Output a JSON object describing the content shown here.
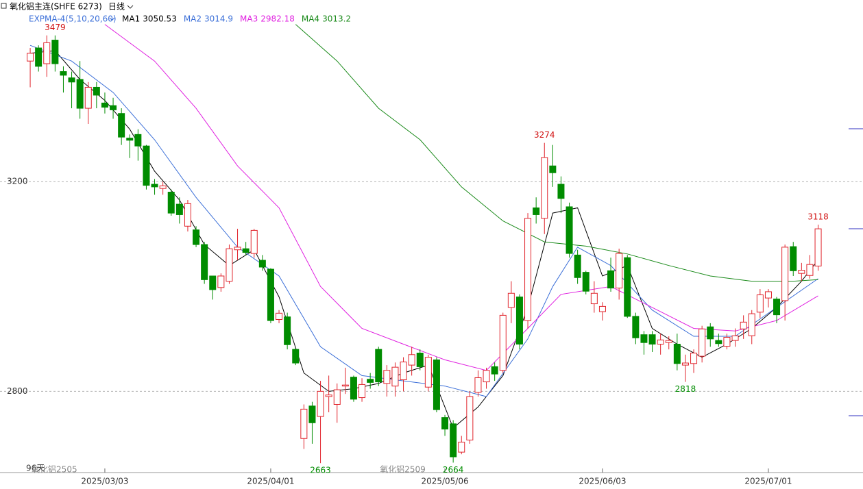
{
  "chart_data": {
    "type": "candlestick",
    "title": "氧化铝主连(SHFE 6273)",
    "period": "日线",
    "indicator": "EXPMA-4(5,10,20,60)",
    "up_color": "#e0232b",
    "down_color": "#008c00",
    "ylim": [
      2645,
      3523
    ],
    "yticks": [
      2800,
      3200
    ],
    "grid": true,
    "open": [
      3430,
      3455,
      3425,
      3470,
      3410,
      3398,
      3395,
      3340,
      3380,
      3350,
      3345,
      3330,
      3283,
      3290,
      3268,
      3195,
      3187,
      3180,
      3157,
      3115,
      3108,
      3080,
      3020,
      2998,
      3010,
      3070,
      3072,
      3063,
      3050,
      3033,
      2937,
      2942,
      2880,
      2710,
      2772,
      2752,
      2790,
      2775,
      2810,
      2827,
      2788,
      2823,
      2880,
      2815,
      2810,
      2822,
      2850,
      2873,
      2808,
      2860,
      2750,
      2738,
      2684,
      2707,
      2798,
      2818,
      2847,
      2840,
      2960,
      2980,
      2935,
      3150,
      3130,
      3230,
      3195,
      3152,
      3060,
      3027,
      2967,
      2952,
      3030,
      2997,
      3055,
      2943,
      2908,
      2908,
      2890,
      2893,
      2890,
      2850,
      2853,
      2867,
      2923,
      2897,
      2886,
      2897,
      2919,
      2906,
      2951,
      2978,
      2976,
      2973,
      3076,
      3025,
      3021,
      3039
    ],
    "high": [
      3455,
      3460,
      3479,
      3479,
      3420,
      3410,
      3430,
      3390,
      3390,
      3370,
      3360,
      3340,
      3290,
      3300,
      3270,
      3205,
      3200,
      3185,
      3170,
      3165,
      3115,
      3085,
      3020,
      3025,
      3080,
      3110,
      3085,
      3110,
      3060,
      3035,
      2955,
      2950,
      2882,
      2775,
      2780,
      2820,
      2830,
      2815,
      2845,
      2830,
      2825,
      2835,
      2885,
      2850,
      2855,
      2865,
      2885,
      2880,
      2870,
      2865,
      2755,
      2745,
      2715,
      2800,
      2840,
      2845,
      2855,
      2950,
      3010,
      2985,
      3140,
      3170,
      3274,
      3270,
      3210,
      3160,
      3070,
      3030,
      3010,
      2970,
      3055,
      3072,
      3060,
      2950,
      2915,
      2915,
      2910,
      2905,
      2910,
      2870,
      2880,
      2925,
      2930,
      2910,
      2910,
      2920,
      2945,
      2955,
      2995,
      2995,
      2980,
      3080,
      3085,
      3045,
      3060,
      3118
    ],
    "low": [
      3380,
      3410,
      3400,
      3410,
      3370,
      3340,
      3320,
      3310,
      3340,
      3330,
      3320,
      3270,
      3245,
      3240,
      3185,
      3175,
      3175,
      3135,
      3120,
      3105,
      3075,
      3005,
      2975,
      2990,
      3005,
      3050,
      3060,
      3055,
      3030,
      2930,
      2930,
      2880,
      2850,
      2690,
      2700,
      2663,
      2760,
      2740,
      2795,
      2780,
      2780,
      2805,
      2810,
      2790,
      2790,
      2800,
      2830,
      2840,
      2800,
      2760,
      2715,
      2664,
      2680,
      2700,
      2790,
      2805,
      2820,
      2835,
      2930,
      2880,
      2920,
      3120,
      3100,
      3190,
      3140,
      3055,
      3005,
      2985,
      2950,
      2935,
      2990,
      2975,
      2940,
      2890,
      2870,
      2875,
      2870,
      2880,
      2840,
      2818,
      2835,
      2855,
      2885,
      2885,
      2880,
      2885,
      2900,
      2890,
      2940,
      2960,
      2930,
      2935,
      3020,
      3010,
      3015,
      3030
    ],
    "close": [
      3445,
      3420,
      3465,
      3425,
      3403,
      3390,
      3340,
      3380,
      3365,
      3342,
      3337,
      3285,
      3279,
      3268,
      3193,
      3190,
      3192,
      3140,
      3137,
      3158,
      3080,
      3013,
      2994,
      3020,
      3072,
      3075,
      3065,
      3107,
      3037,
      2935,
      2949,
      2889,
      2854,
      2766,
      2740,
      2800,
      2793,
      2803,
      2812,
      2785,
      2813,
      2817,
      2818,
      2840,
      2846,
      2856,
      2870,
      2847,
      2865,
      2765,
      2728,
      2675,
      2703,
      2790,
      2826,
      2840,
      2833,
      2945,
      2987,
      2890,
      3130,
      3137,
      3246,
      3217,
      3168,
      3063,
      3017,
      2991,
      2987,
      2962,
      2997,
      3063,
      2943,
      2902,
      2893,
      2890,
      2898,
      2897,
      2853,
      2854,
      2873,
      2919,
      2900,
      2891,
      2903,
      2906,
      2932,
      2948,
      2984,
      2990,
      2946,
      3075,
      3030,
      3031,
      3042,
      3110
    ],
    "lines": [
      {
        "name": "MA1",
        "color": "#000000",
        "x": [
          0,
          3,
          6,
          9,
          12,
          15,
          18,
          21,
          24,
          27,
          30,
          33,
          36,
          39,
          42,
          45,
          48,
          51,
          54,
          57,
          60,
          63,
          66,
          69,
          72,
          75,
          78,
          81,
          84,
          87,
          90,
          93,
          95
        ],
        "values": [
          3445,
          3450,
          3395,
          3355,
          3300,
          3220,
          3165,
          3080,
          3040,
          3070,
          2980,
          2835,
          2800,
          2805,
          2815,
          2835,
          2850,
          2730,
          2770,
          2830,
          2960,
          3140,
          3150,
          3020,
          3040,
          2920,
          2890,
          2865,
          2890,
          2920,
          2960,
          3010,
          3050.53
        ]
      },
      {
        "name": "MA2",
        "color": "#3b6fd8",
        "x": [
          0,
          5,
          10,
          15,
          20,
          25,
          30,
          35,
          40,
          45,
          50,
          55,
          60,
          63,
          66,
          70,
          75,
          80,
          85,
          90,
          95
        ],
        "values": [
          3460,
          3430,
          3370,
          3280,
          3170,
          3075,
          3020,
          2885,
          2830,
          2820,
          2810,
          2790,
          2900,
          3000,
          3075,
          3040,
          2955,
          2905,
          2905,
          2960,
          3014.9
        ]
      },
      {
        "name": "MA3",
        "color": "#e020e0",
        "x": [
          9,
          15,
          20,
          25,
          30,
          35,
          40,
          45,
          50,
          55,
          60,
          64,
          70,
          75,
          80,
          85,
          90,
          95
        ],
        "values": [
          3500,
          3430,
          3340,
          3230,
          3150,
          3000,
          2920,
          2890,
          2860,
          2840,
          2920,
          2985,
          3000,
          2960,
          2920,
          2915,
          2935,
          2982.18
        ]
      },
      {
        "name": "MA4",
        "color": "#1a8a1a",
        "x": [
          32,
          37,
          42,
          47,
          52,
          57,
          62,
          67,
          72,
          77,
          82,
          87,
          92,
          95
        ],
        "values": [
          3500,
          3430,
          3340,
          3280,
          3190,
          3125,
          3085,
          3077,
          3062,
          3040,
          3020,
          3010,
          3010,
          3013.2
        ]
      }
    ],
    "date_ticks": [
      {
        "value": 9,
        "label": "2025/03/03"
      },
      {
        "value": 29,
        "label": "2025/04/01"
      },
      {
        "value": 50,
        "label": "2025/05/06"
      },
      {
        "value": 69,
        "label": "2025/06/03"
      },
      {
        "value": 89,
        "label": "2025/07/01"
      }
    ],
    "extremes": [
      {
        "index": 3,
        "kind": "high"
      },
      {
        "index": 62,
        "kind": "high"
      },
      {
        "index": 95,
        "kind": "high"
      },
      {
        "index": 35,
        "kind": "low"
      },
      {
        "index": 51,
        "kind": "low"
      },
      {
        "index": 79,
        "kind": "low"
      }
    ],
    "day_count": "96天",
    "contracts": [
      {
        "index": 0,
        "label": "氧化铝2505"
      },
      {
        "index": 42,
        "label": "氧化铝2509"
      }
    ]
  }
}
